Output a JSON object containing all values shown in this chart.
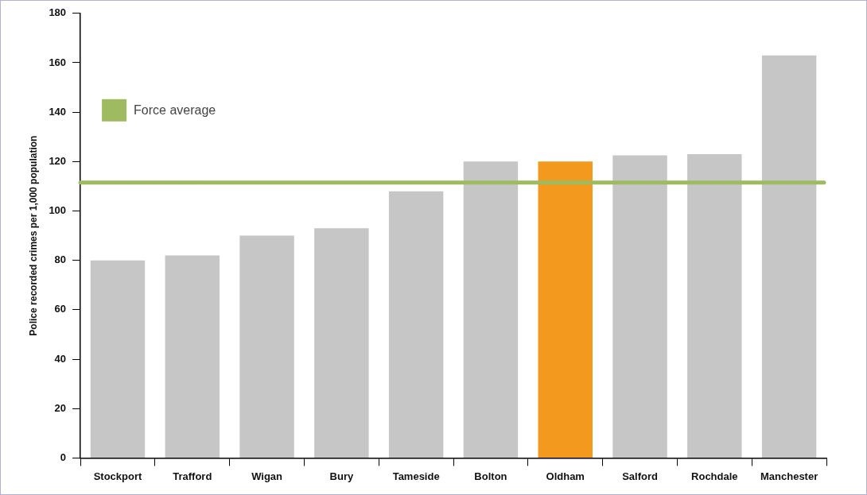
{
  "chart_data": {
    "type": "bar",
    "ylabel": "Police recorded crimes per 1,000 population",
    "categories": [
      "Stockport",
      "Trafford",
      "Wigan",
      "Bury",
      "Tameside",
      "Bolton",
      "Oldham",
      "Salford",
      "Rochdale",
      "Manchester"
    ],
    "values": [
      80,
      82,
      90,
      93,
      108,
      120,
      120,
      122.5,
      123,
      163
    ],
    "colors": [
      "#c6c6c6",
      "#c6c6c6",
      "#c6c6c6",
      "#c6c6c6",
      "#c6c6c6",
      "#c6c6c6",
      "#f3991d",
      "#c6c6c6",
      "#c6c6c6",
      "#c6c6c6"
    ],
    "ylim": [
      0,
      180
    ],
    "yticks": [
      0,
      20,
      40,
      60,
      80,
      100,
      120,
      140,
      160,
      180
    ],
    "grid": false,
    "legend": "top left",
    "ref_lines": [
      {
        "axis": "y",
        "value": 111.5,
        "label": "Force average",
        "color": "#9fbb5f"
      }
    ]
  }
}
